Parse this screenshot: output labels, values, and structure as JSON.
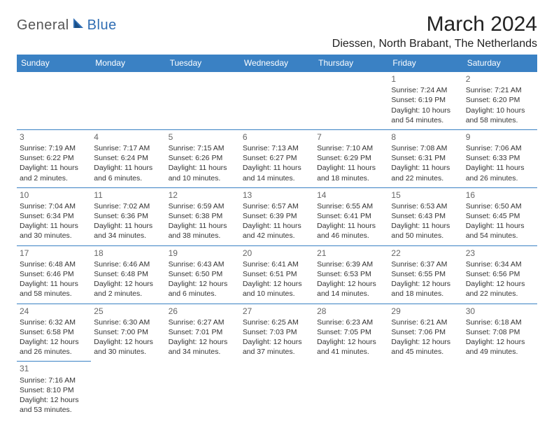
{
  "brand": {
    "part1": "General",
    "part2": "Blue"
  },
  "title": "March 2024",
  "location": "Diessen, North Brabant, The Netherlands",
  "colors": {
    "header_bg": "#3a81c4",
    "header_fg": "#ffffff",
    "border": "#3a81c4",
    "brand_gray": "#555555",
    "brand_blue": "#2f6db3"
  },
  "day_headers": [
    "Sunday",
    "Monday",
    "Tuesday",
    "Wednesday",
    "Thursday",
    "Friday",
    "Saturday"
  ],
  "weeks": [
    [
      null,
      null,
      null,
      null,
      null,
      {
        "n": "1",
        "sr": "Sunrise: 7:24 AM",
        "ss": "Sunset: 6:19 PM",
        "d1": "Daylight: 10 hours",
        "d2": "and 54 minutes."
      },
      {
        "n": "2",
        "sr": "Sunrise: 7:21 AM",
        "ss": "Sunset: 6:20 PM",
        "d1": "Daylight: 10 hours",
        "d2": "and 58 minutes."
      }
    ],
    [
      {
        "n": "3",
        "sr": "Sunrise: 7:19 AM",
        "ss": "Sunset: 6:22 PM",
        "d1": "Daylight: 11 hours",
        "d2": "and 2 minutes."
      },
      {
        "n": "4",
        "sr": "Sunrise: 7:17 AM",
        "ss": "Sunset: 6:24 PM",
        "d1": "Daylight: 11 hours",
        "d2": "and 6 minutes."
      },
      {
        "n": "5",
        "sr": "Sunrise: 7:15 AM",
        "ss": "Sunset: 6:26 PM",
        "d1": "Daylight: 11 hours",
        "d2": "and 10 minutes."
      },
      {
        "n": "6",
        "sr": "Sunrise: 7:13 AM",
        "ss": "Sunset: 6:27 PM",
        "d1": "Daylight: 11 hours",
        "d2": "and 14 minutes."
      },
      {
        "n": "7",
        "sr": "Sunrise: 7:10 AM",
        "ss": "Sunset: 6:29 PM",
        "d1": "Daylight: 11 hours",
        "d2": "and 18 minutes."
      },
      {
        "n": "8",
        "sr": "Sunrise: 7:08 AM",
        "ss": "Sunset: 6:31 PM",
        "d1": "Daylight: 11 hours",
        "d2": "and 22 minutes."
      },
      {
        "n": "9",
        "sr": "Sunrise: 7:06 AM",
        "ss": "Sunset: 6:33 PM",
        "d1": "Daylight: 11 hours",
        "d2": "and 26 minutes."
      }
    ],
    [
      {
        "n": "10",
        "sr": "Sunrise: 7:04 AM",
        "ss": "Sunset: 6:34 PM",
        "d1": "Daylight: 11 hours",
        "d2": "and 30 minutes."
      },
      {
        "n": "11",
        "sr": "Sunrise: 7:02 AM",
        "ss": "Sunset: 6:36 PM",
        "d1": "Daylight: 11 hours",
        "d2": "and 34 minutes."
      },
      {
        "n": "12",
        "sr": "Sunrise: 6:59 AM",
        "ss": "Sunset: 6:38 PM",
        "d1": "Daylight: 11 hours",
        "d2": "and 38 minutes."
      },
      {
        "n": "13",
        "sr": "Sunrise: 6:57 AM",
        "ss": "Sunset: 6:39 PM",
        "d1": "Daylight: 11 hours",
        "d2": "and 42 minutes."
      },
      {
        "n": "14",
        "sr": "Sunrise: 6:55 AM",
        "ss": "Sunset: 6:41 PM",
        "d1": "Daylight: 11 hours",
        "d2": "and 46 minutes."
      },
      {
        "n": "15",
        "sr": "Sunrise: 6:53 AM",
        "ss": "Sunset: 6:43 PM",
        "d1": "Daylight: 11 hours",
        "d2": "and 50 minutes."
      },
      {
        "n": "16",
        "sr": "Sunrise: 6:50 AM",
        "ss": "Sunset: 6:45 PM",
        "d1": "Daylight: 11 hours",
        "d2": "and 54 minutes."
      }
    ],
    [
      {
        "n": "17",
        "sr": "Sunrise: 6:48 AM",
        "ss": "Sunset: 6:46 PM",
        "d1": "Daylight: 11 hours",
        "d2": "and 58 minutes."
      },
      {
        "n": "18",
        "sr": "Sunrise: 6:46 AM",
        "ss": "Sunset: 6:48 PM",
        "d1": "Daylight: 12 hours",
        "d2": "and 2 minutes."
      },
      {
        "n": "19",
        "sr": "Sunrise: 6:43 AM",
        "ss": "Sunset: 6:50 PM",
        "d1": "Daylight: 12 hours",
        "d2": "and 6 minutes."
      },
      {
        "n": "20",
        "sr": "Sunrise: 6:41 AM",
        "ss": "Sunset: 6:51 PM",
        "d1": "Daylight: 12 hours",
        "d2": "and 10 minutes."
      },
      {
        "n": "21",
        "sr": "Sunrise: 6:39 AM",
        "ss": "Sunset: 6:53 PM",
        "d1": "Daylight: 12 hours",
        "d2": "and 14 minutes."
      },
      {
        "n": "22",
        "sr": "Sunrise: 6:37 AM",
        "ss": "Sunset: 6:55 PM",
        "d1": "Daylight: 12 hours",
        "d2": "and 18 minutes."
      },
      {
        "n": "23",
        "sr": "Sunrise: 6:34 AM",
        "ss": "Sunset: 6:56 PM",
        "d1": "Daylight: 12 hours",
        "d2": "and 22 minutes."
      }
    ],
    [
      {
        "n": "24",
        "sr": "Sunrise: 6:32 AM",
        "ss": "Sunset: 6:58 PM",
        "d1": "Daylight: 12 hours",
        "d2": "and 26 minutes."
      },
      {
        "n": "25",
        "sr": "Sunrise: 6:30 AM",
        "ss": "Sunset: 7:00 PM",
        "d1": "Daylight: 12 hours",
        "d2": "and 30 minutes."
      },
      {
        "n": "26",
        "sr": "Sunrise: 6:27 AM",
        "ss": "Sunset: 7:01 PM",
        "d1": "Daylight: 12 hours",
        "d2": "and 34 minutes."
      },
      {
        "n": "27",
        "sr": "Sunrise: 6:25 AM",
        "ss": "Sunset: 7:03 PM",
        "d1": "Daylight: 12 hours",
        "d2": "and 37 minutes."
      },
      {
        "n": "28",
        "sr": "Sunrise: 6:23 AM",
        "ss": "Sunset: 7:05 PM",
        "d1": "Daylight: 12 hours",
        "d2": "and 41 minutes."
      },
      {
        "n": "29",
        "sr": "Sunrise: 6:21 AM",
        "ss": "Sunset: 7:06 PM",
        "d1": "Daylight: 12 hours",
        "d2": "and 45 minutes."
      },
      {
        "n": "30",
        "sr": "Sunrise: 6:18 AM",
        "ss": "Sunset: 7:08 PM",
        "d1": "Daylight: 12 hours",
        "d2": "and 49 minutes."
      }
    ],
    [
      {
        "n": "31",
        "sr": "Sunrise: 7:16 AM",
        "ss": "Sunset: 8:10 PM",
        "d1": "Daylight: 12 hours",
        "d2": "and 53 minutes."
      },
      null,
      null,
      null,
      null,
      null,
      null
    ]
  ]
}
